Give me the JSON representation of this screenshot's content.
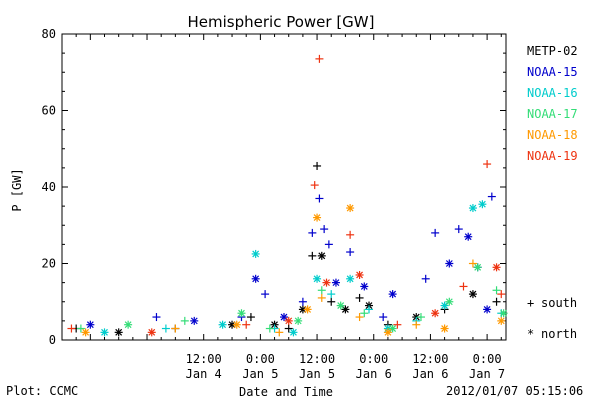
{
  "chart_data": {
    "type": "scatter",
    "title": "Hemispheric Power [GW]",
    "xlabel": "Date and Time",
    "ylabel": "P [GW]",
    "xlim": [
      "2012-01-03 06:00",
      "2012-01-07 04:00"
    ],
    "ylim": [
      0,
      80
    ],
    "yticks": [
      0,
      20,
      40,
      60,
      80
    ],
    "xticks": [
      {
        "time": "2012-01-04 12:00",
        "label1": "12:00",
        "label2": "Jan 4"
      },
      {
        "time": "2012-01-05 00:00",
        "label1": "0:00",
        "label2": "Jan 5"
      },
      {
        "time": "2012-01-05 12:00",
        "label1": "12:00",
        "label2": "Jan 5"
      },
      {
        "time": "2012-01-06 00:00",
        "label1": "0:00",
        "label2": "Jan 6"
      },
      {
        "time": "2012-01-06 12:00",
        "label1": "12:00",
        "label2": "Jan 6"
      },
      {
        "time": "2012-01-07 00:00",
        "label1": "0:00",
        "label2": "Jan 7"
      }
    ],
    "grid": false,
    "legend_position": "right",
    "markers": {
      "south": "+",
      "north": "*"
    },
    "series": [
      {
        "name": "METP-02",
        "color": "#000000",
        "points": [
          {
            "t": "2012-01-03 09:00",
            "v": 3,
            "m": "+"
          },
          {
            "t": "2012-01-03 18:00",
            "v": 2,
            "m": "*"
          },
          {
            "t": "2012-01-04 06:00",
            "v": 3,
            "m": "+"
          },
          {
            "t": "2012-01-04 18:00",
            "v": 4,
            "m": "*"
          },
          {
            "t": "2012-01-04 22:00",
            "v": 6,
            "m": "+"
          },
          {
            "t": "2012-01-05 03:00",
            "v": 4,
            "m": "*"
          },
          {
            "t": "2012-01-05 06:00",
            "v": 3,
            "m": "+"
          },
          {
            "t": "2012-01-05 09:00",
            "v": 8,
            "m": "*"
          },
          {
            "t": "2012-01-05 11:00",
            "v": 22,
            "m": "+"
          },
          {
            "t": "2012-01-05 12:00",
            "v": 45.5,
            "m": "+"
          },
          {
            "t": "2012-01-05 13:00",
            "v": 22,
            "m": "*"
          },
          {
            "t": "2012-01-05 15:00",
            "v": 10,
            "m": "+"
          },
          {
            "t": "2012-01-05 18:00",
            "v": 8,
            "m": "*"
          },
          {
            "t": "2012-01-05 21:00",
            "v": 11,
            "m": "+"
          },
          {
            "t": "2012-01-05 23:00",
            "v": 9,
            "m": "*"
          },
          {
            "t": "2012-01-06 03:00",
            "v": 4,
            "m": "+"
          },
          {
            "t": "2012-01-06 09:00",
            "v": 6,
            "m": "*"
          },
          {
            "t": "2012-01-06 15:00",
            "v": 8,
            "m": "+"
          },
          {
            "t": "2012-01-06 21:00",
            "v": 12,
            "m": "*"
          },
          {
            "t": "2012-01-07 02:00",
            "v": 10,
            "m": "+"
          }
        ]
      },
      {
        "name": "NOAA-15",
        "color": "#0000cc",
        "points": [
          {
            "t": "2012-01-03 12:00",
            "v": 4,
            "m": "*"
          },
          {
            "t": "2012-01-04 02:00",
            "v": 6,
            "m": "+"
          },
          {
            "t": "2012-01-04 10:00",
            "v": 5,
            "m": "*"
          },
          {
            "t": "2012-01-04 20:00",
            "v": 6,
            "m": "+"
          },
          {
            "t": "2012-01-04 23:00",
            "v": 16,
            "m": "*"
          },
          {
            "t": "2012-01-05 01:00",
            "v": 12,
            "m": "+"
          },
          {
            "t": "2012-01-05 05:00",
            "v": 6,
            "m": "*"
          },
          {
            "t": "2012-01-05 09:00",
            "v": 10,
            "m": "+"
          },
          {
            "t": "2012-01-05 11:00",
            "v": 28,
            "m": "+"
          },
          {
            "t": "2012-01-05 12:30",
            "v": 37,
            "m": "+"
          },
          {
            "t": "2012-01-05 13:30",
            "v": 29,
            "m": "+"
          },
          {
            "t": "2012-01-05 14:30",
            "v": 25,
            "m": "+"
          },
          {
            "t": "2012-01-05 16:00",
            "v": 15,
            "m": "*"
          },
          {
            "t": "2012-01-05 19:00",
            "v": 23,
            "m": "+"
          },
          {
            "t": "2012-01-05 22:00",
            "v": 14,
            "m": "*"
          },
          {
            "t": "2012-01-06 02:00",
            "v": 6,
            "m": "+"
          },
          {
            "t": "2012-01-06 04:00",
            "v": 12,
            "m": "*"
          },
          {
            "t": "2012-01-06 11:00",
            "v": 16,
            "m": "+"
          },
          {
            "t": "2012-01-06 13:00",
            "v": 28,
            "m": "+"
          },
          {
            "t": "2012-01-06 16:00",
            "v": 20,
            "m": "*"
          },
          {
            "t": "2012-01-06 18:00",
            "v": 29,
            "m": "+"
          },
          {
            "t": "2012-01-06 20:00",
            "v": 27,
            "m": "*"
          },
          {
            "t": "2012-01-06 22:00",
            "v": 19,
            "m": "+"
          },
          {
            "t": "2012-01-07 00:00",
            "v": 8,
            "m": "*"
          },
          {
            "t": "2012-01-07 01:00",
            "v": 37.5,
            "m": "+"
          }
        ]
      },
      {
        "name": "NOAA-16",
        "color": "#00cccc",
        "points": [
          {
            "t": "2012-01-03 15:00",
            "v": 2,
            "m": "*"
          },
          {
            "t": "2012-01-04 04:00",
            "v": 3,
            "m": "+"
          },
          {
            "t": "2012-01-04 16:00",
            "v": 4,
            "m": "*"
          },
          {
            "t": "2012-01-04 23:00",
            "v": 22.5,
            "m": "*"
          },
          {
            "t": "2012-01-05 03:00",
            "v": 3,
            "m": "+"
          },
          {
            "t": "2012-01-05 07:00",
            "v": 2,
            "m": "*"
          },
          {
            "t": "2012-01-05 12:00",
            "v": 16,
            "m": "*"
          },
          {
            "t": "2012-01-05 15:00",
            "v": 12,
            "m": "+"
          },
          {
            "t": "2012-01-05 19:00",
            "v": 16,
            "m": "*"
          },
          {
            "t": "2012-01-05 23:00",
            "v": 8,
            "m": "+"
          },
          {
            "t": "2012-01-06 03:00",
            "v": 3,
            "m": "*"
          },
          {
            "t": "2012-01-06 09:00",
            "v": 5,
            "m": "+"
          },
          {
            "t": "2012-01-06 15:00",
            "v": 9,
            "m": "*"
          },
          {
            "t": "2012-01-06 21:00",
            "v": 34.5,
            "m": "*"
          },
          {
            "t": "2012-01-06 23:00",
            "v": 35.5,
            "m": "*"
          },
          {
            "t": "2012-01-07 03:00",
            "v": 7,
            "m": "+"
          }
        ]
      },
      {
        "name": "NOAA-17",
        "color": "#33dd77",
        "points": [
          {
            "t": "2012-01-03 10:00",
            "v": 3,
            "m": "+"
          },
          {
            "t": "2012-01-03 20:00",
            "v": 4,
            "m": "*"
          },
          {
            "t": "2012-01-04 08:00",
            "v": 5,
            "m": "+"
          },
          {
            "t": "2012-01-04 20:00",
            "v": 7,
            "m": "*"
          },
          {
            "t": "2012-01-05 02:00",
            "v": 3,
            "m": "+"
          },
          {
            "t": "2012-01-05 08:00",
            "v": 5,
            "m": "*"
          },
          {
            "t": "2012-01-05 13:00",
            "v": 13,
            "m": "+"
          },
          {
            "t": "2012-01-05 17:00",
            "v": 9,
            "m": "*"
          },
          {
            "t": "2012-01-05 22:00",
            "v": 7,
            "m": "+"
          },
          {
            "t": "2012-01-06 04:00",
            "v": 3,
            "m": "*"
          },
          {
            "t": "2012-01-06 10:00",
            "v": 6,
            "m": "+"
          },
          {
            "t": "2012-01-06 16:00",
            "v": 10,
            "m": "*"
          },
          {
            "t": "2012-01-06 22:00",
            "v": 19,
            "m": "*"
          },
          {
            "t": "2012-01-07 02:00",
            "v": 13,
            "m": "+"
          },
          {
            "t": "2012-01-07 03:30",
            "v": 7,
            "m": "*"
          }
        ]
      },
      {
        "name": "NOAA-18",
        "color": "#ff9900",
        "points": [
          {
            "t": "2012-01-03 11:00",
            "v": 2,
            "m": "*"
          },
          {
            "t": "2012-01-04 06:00",
            "v": 3,
            "m": "+"
          },
          {
            "t": "2012-01-04 19:00",
            "v": 4,
            "m": "*"
          },
          {
            "t": "2012-01-05 04:00",
            "v": 2,
            "m": "+"
          },
          {
            "t": "2012-01-05 10:00",
            "v": 8,
            "m": "*"
          },
          {
            "t": "2012-01-05 12:00",
            "v": 32,
            "m": "*"
          },
          {
            "t": "2012-01-05 13:00",
            "v": 11,
            "m": "+"
          },
          {
            "t": "2012-01-05 19:00",
            "v": 34.5,
            "m": "*"
          },
          {
            "t": "2012-01-05 21:00",
            "v": 6,
            "m": "+"
          },
          {
            "t": "2012-01-06 03:00",
            "v": 2,
            "m": "*"
          },
          {
            "t": "2012-01-06 09:00",
            "v": 4,
            "m": "+"
          },
          {
            "t": "2012-01-06 15:00",
            "v": 3,
            "m": "*"
          },
          {
            "t": "2012-01-06 21:00",
            "v": 20,
            "m": "+"
          },
          {
            "t": "2012-01-07 03:00",
            "v": 5,
            "m": "*"
          }
        ]
      },
      {
        "name": "NOAA-19",
        "color": "#ee3311",
        "points": [
          {
            "t": "2012-01-03 08:00",
            "v": 3,
            "m": "+"
          },
          {
            "t": "2012-01-04 01:00",
            "v": 2,
            "m": "*"
          },
          {
            "t": "2012-01-04 21:00",
            "v": 4,
            "m": "+"
          },
          {
            "t": "2012-01-05 06:00",
            "v": 5,
            "m": "*"
          },
          {
            "t": "2012-01-05 11:30",
            "v": 40.5,
            "m": "+"
          },
          {
            "t": "2012-01-05 12:30",
            "v": 73.5,
            "m": "+"
          },
          {
            "t": "2012-01-05 14:00",
            "v": 15,
            "m": "*"
          },
          {
            "t": "2012-01-05 19:00",
            "v": 27.5,
            "m": "+"
          },
          {
            "t": "2012-01-05 21:00",
            "v": 17,
            "m": "*"
          },
          {
            "t": "2012-01-06 05:00",
            "v": 4,
            "m": "+"
          },
          {
            "t": "2012-01-06 13:00",
            "v": 7,
            "m": "*"
          },
          {
            "t": "2012-01-06 19:00",
            "v": 14,
            "m": "+"
          },
          {
            "t": "2012-01-07 00:00",
            "v": 46,
            "m": "+"
          },
          {
            "t": "2012-01-07 02:00",
            "v": 19,
            "m": "*"
          },
          {
            "t": "2012-01-07 03:00",
            "v": 12,
            "m": "+"
          }
        ]
      }
    ],
    "legend_markers": [
      {
        "symbol": "+",
        "label": "south"
      },
      {
        "symbol": "*",
        "label": "north"
      }
    ]
  },
  "footer": {
    "plot_credit": "Plot: CCMC",
    "timestamp": "2012/01/07 05:15:06"
  }
}
